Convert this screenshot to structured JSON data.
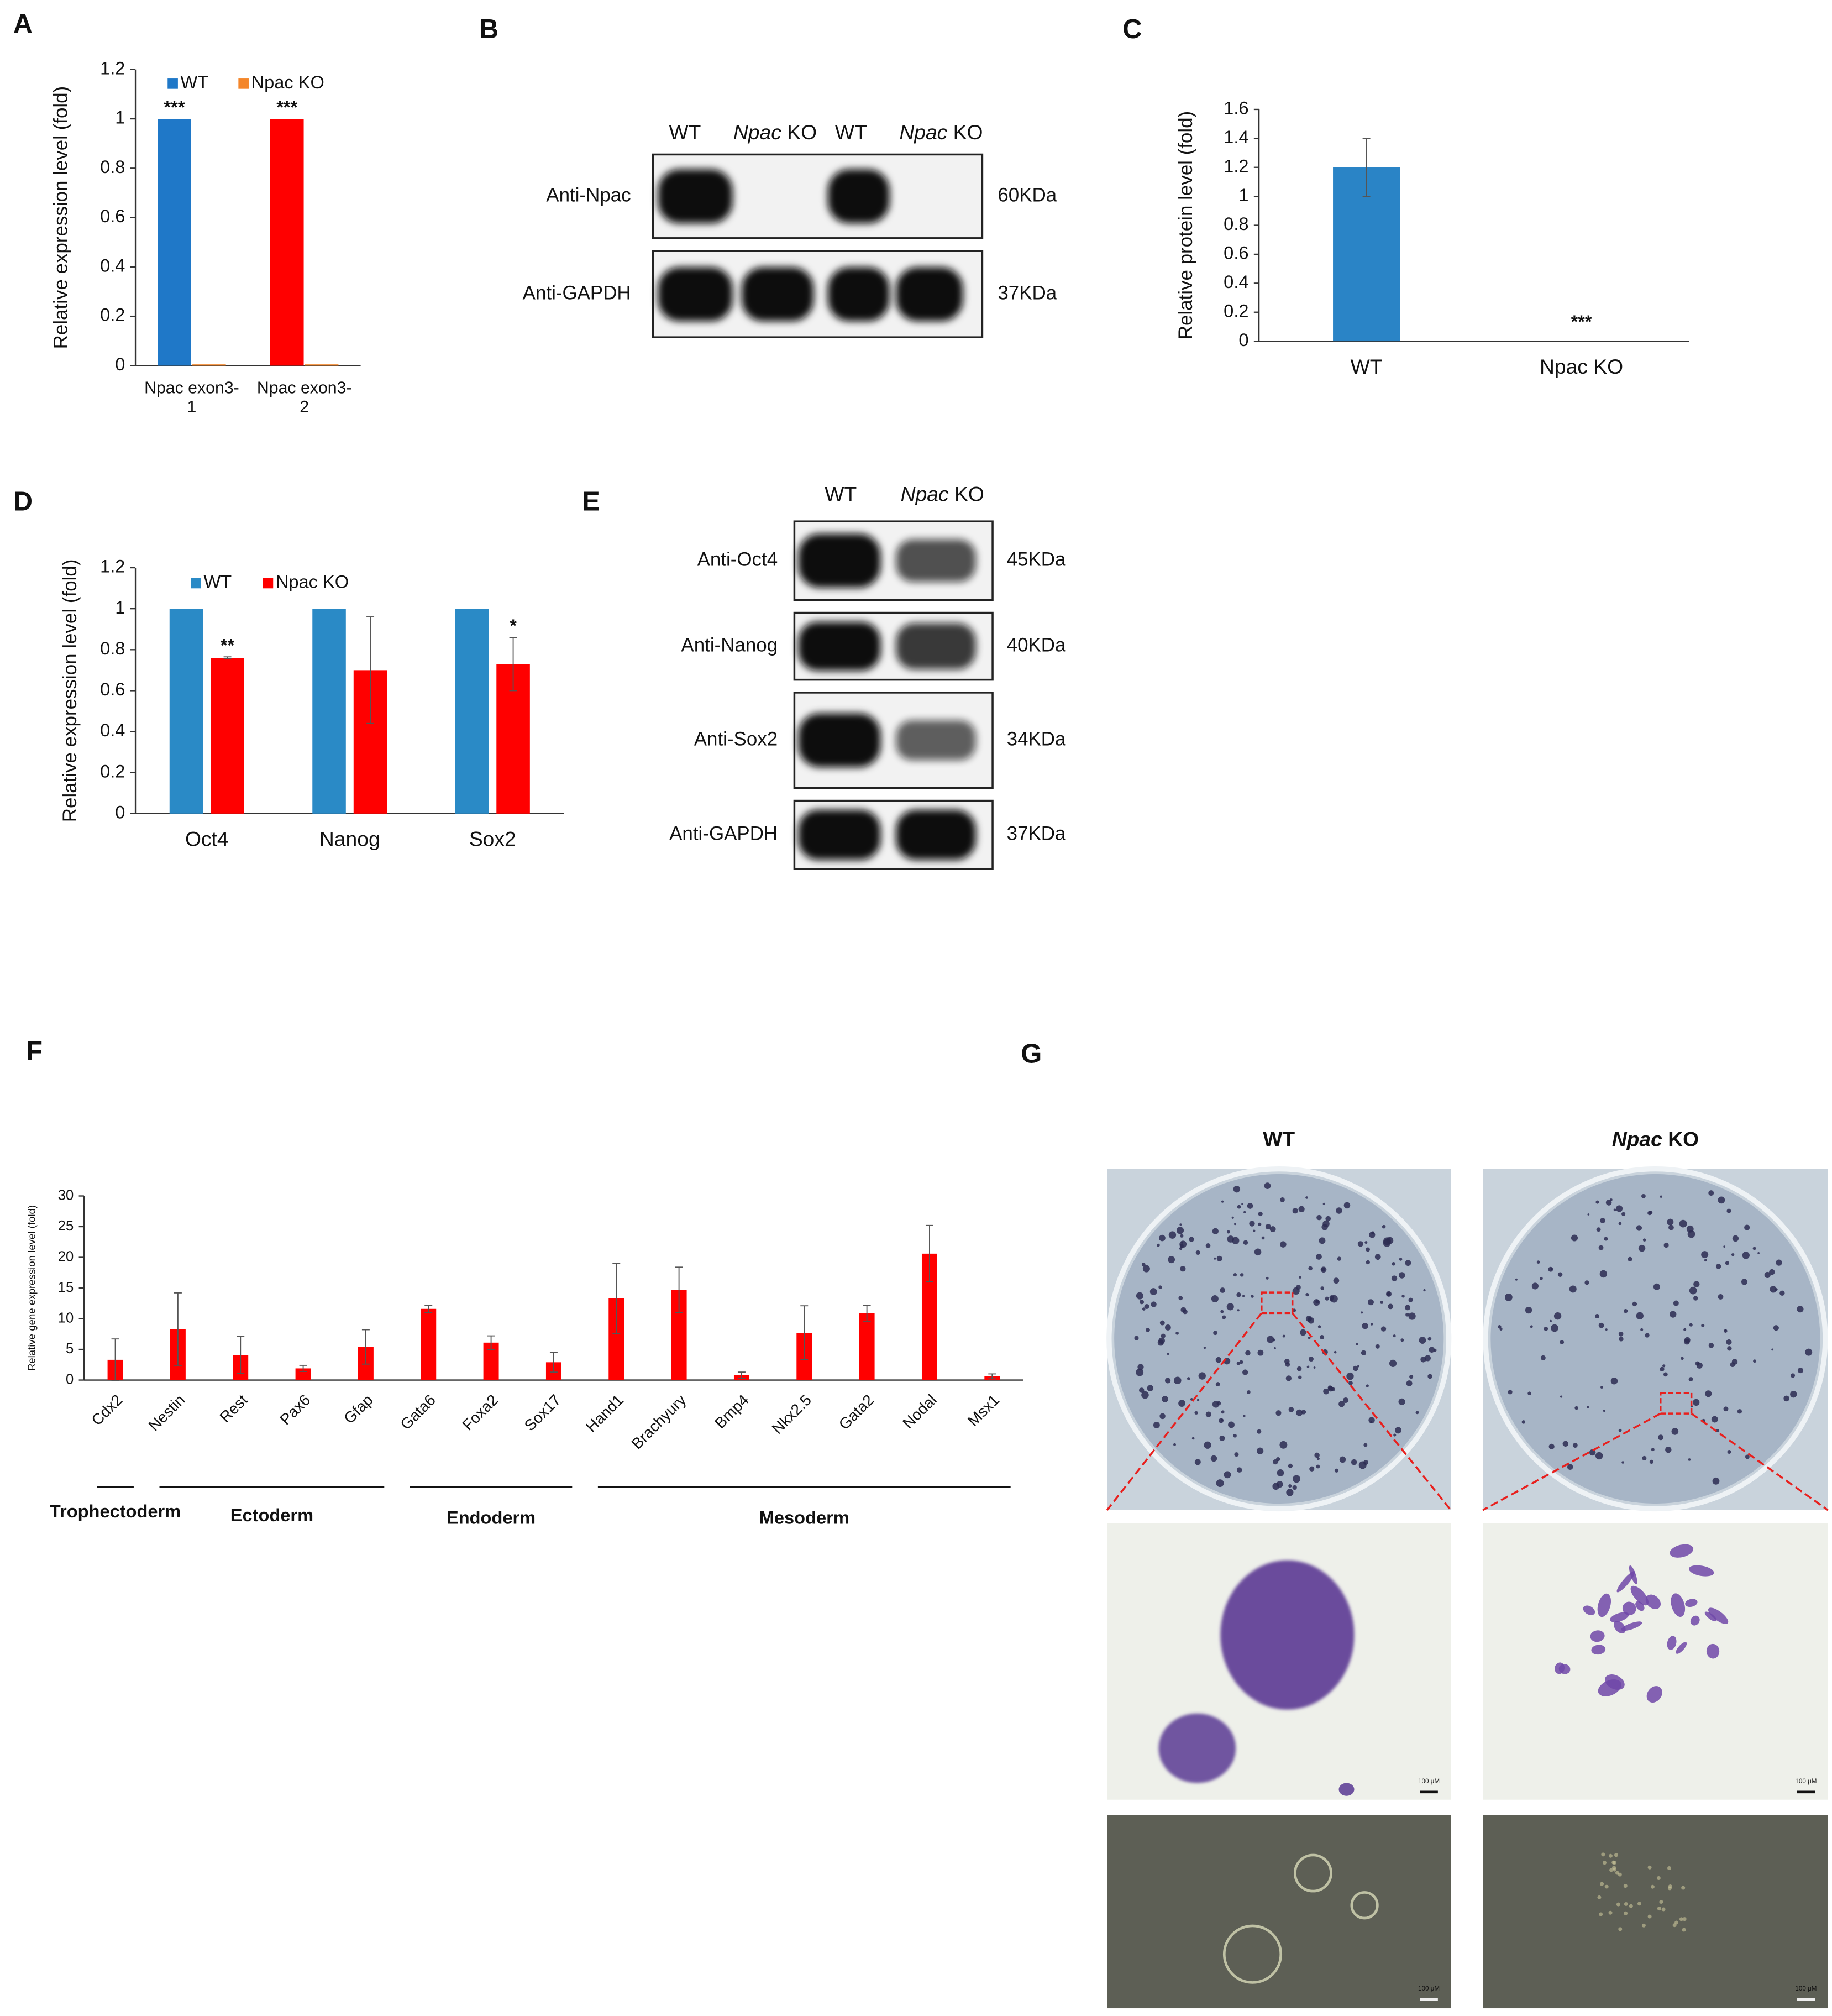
{
  "chart_data": [
    {
      "type": "bar",
      "panel": "A",
      "ylabel": "Relative expression level (fold)",
      "categories": [
        "Npac exon3-1",
        "Npac exon3-2"
      ],
      "series": [
        {
          "name": "WT",
          "color": "#1f78c8",
          "colors": [
            "#1f78c8",
            "#ff0000"
          ],
          "values": [
            1,
            1
          ],
          "annotations": [
            "***",
            "***"
          ]
        },
        {
          "name": "Npac KO",
          "color": "#f4862a",
          "values": [
            0.005,
            0.005
          ]
        }
      ],
      "ylim": [
        0,
        1.2
      ],
      "yticks": [
        0,
        0.2,
        0.4,
        0.6,
        0.8,
        1,
        1.2
      ]
    },
    {
      "type": "bar",
      "panel": "C",
      "ylabel": "Relative protein level (fold)",
      "categories": [
        "WT",
        "Npac KO"
      ],
      "color": "#2a84c6",
      "values": [
        1.2,
        0
      ],
      "errors": [
        0.2,
        0
      ],
      "annotations": [
        null,
        "***"
      ],
      "ylim": [
        0,
        1.6
      ],
      "yticks": [
        0,
        0.2,
        0.4,
        0.6,
        0.8,
        1,
        1.2,
        1.4,
        1.6
      ]
    },
    {
      "type": "bar",
      "panel": "D",
      "ylabel": "Relative expression level (fold)",
      "categories": [
        "Oct4",
        "Nanog",
        "Sox2"
      ],
      "series": [
        {
          "name": "WT",
          "color": "#2a8ac6",
          "values": [
            1,
            1,
            1
          ]
        },
        {
          "name": "Npac KO",
          "color": "#ff0000",
          "values": [
            0.76,
            0.7,
            0.73
          ],
          "errors": [
            0.005,
            0.26,
            0.13
          ],
          "annotations": [
            "**",
            null,
            "*"
          ]
        }
      ],
      "ylim": [
        0,
        1.2
      ],
      "yticks": [
        0,
        0.2,
        0.4,
        0.6,
        0.8,
        1,
        1.2
      ]
    },
    {
      "type": "bar",
      "panel": "F",
      "ylabel": "Relative gene expression level (fold)",
      "categories": [
        "Cdx2",
        "Nestin",
        "Rest",
        "Pax6",
        "Gfap",
        "Gata6",
        "Foxa2",
        "Sox17",
        "Hand1",
        "Brachyury",
        "Bmp4",
        "Nkx2.5",
        "Gata2",
        "Nodal",
        "Msx1"
      ],
      "color": "#ff0000",
      "values": [
        3.3,
        8.3,
        4.1,
        1.9,
        5.4,
        11.6,
        6.1,
        2.9,
        13.3,
        14.7,
        0.8,
        7.7,
        10.9,
        20.6,
        0.6
      ],
      "errors": [
        3.4,
        5.9,
        3.0,
        0.5,
        2.8,
        0.6,
        1.1,
        1.6,
        5.7,
        3.7,
        0.5,
        4.4,
        1.3,
        4.6,
        0.4
      ],
      "groups": [
        {
          "label": "Trophectoderm",
          "size": 1
        },
        {
          "label": "Ectoderm",
          "size": 4
        },
        {
          "label": "Endoderm",
          "size": 3
        },
        {
          "label": "Mesoderm",
          "size": 7
        }
      ],
      "ylim": [
        0,
        30
      ],
      "yticks": [
        0,
        5,
        10,
        15,
        20,
        25,
        30
      ]
    }
  ],
  "blots": [
    {
      "panel": "B",
      "lanes": [
        "WT",
        "Npac KO",
        "WT",
        "Npac KO"
      ],
      "rows": [
        {
          "label": "Anti-Npac",
          "size": "60KDa"
        },
        {
          "label": "Anti-GAPDH",
          "size": "37KDa"
        }
      ]
    },
    {
      "panel": "E",
      "lanes": [
        "WT",
        "Npac KO"
      ],
      "rows": [
        {
          "label": "Anti-Oct4",
          "size": "45KDa"
        },
        {
          "label": "Anti-Nanog",
          "size": "40KDa"
        },
        {
          "label": "Anti-Sox2",
          "size": "34KDa"
        },
        {
          "label": "Anti-GAPDH",
          "size": "37KDa"
        }
      ]
    }
  ],
  "images": {
    "panel": "G",
    "columns": [
      "WT",
      "Npac KO"
    ],
    "scale_bars": [
      "100 μM",
      "100 μM",
      "100 μM",
      "100 μM"
    ]
  }
}
